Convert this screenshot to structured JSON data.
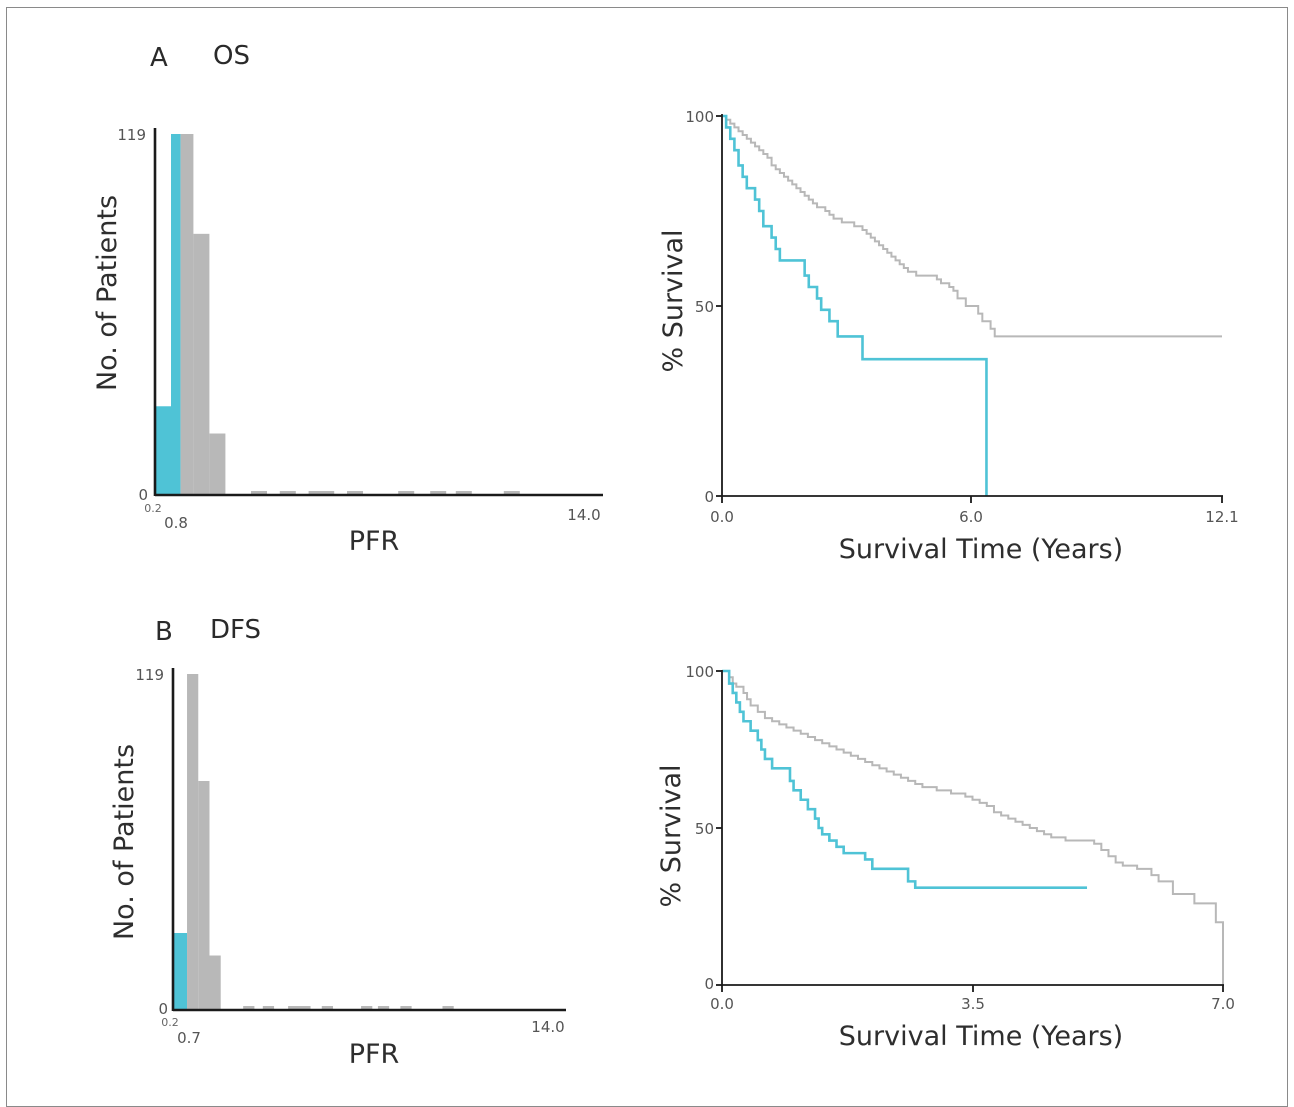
{
  "colors": {
    "high": "#4fc3d6",
    "low": "#b8b8b8",
    "axis": "#1a1a1a"
  },
  "panels": [
    {
      "letter": "A",
      "title": "OS"
    },
    {
      "letter": "B",
      "title": "DFS"
    }
  ],
  "chart_data": [
    {
      "id": "A-hist",
      "type": "bar",
      "title": "",
      "xlabel": "PFR",
      "ylabel": "No. of Patients",
      "yticks": [
        "0",
        "119"
      ],
      "xticks": [
        "0.2",
        "0.8",
        "14.0"
      ],
      "ylim": [
        0,
        119
      ],
      "bins": [
        {
          "x0": 0.0,
          "x1": 0.5,
          "count": 29,
          "group": "high"
        },
        {
          "x0": 0.5,
          "x1": 0.8,
          "count": 119,
          "group": "high"
        },
        {
          "x0": 0.8,
          "x1": 1.2,
          "count": 119,
          "group": "low"
        },
        {
          "x0": 1.2,
          "x1": 1.7,
          "count": 86,
          "group": "low"
        },
        {
          "x0": 1.7,
          "x1": 2.2,
          "count": 20,
          "group": "low"
        },
        {
          "x0": 3.0,
          "x1": 3.5,
          "count": 1,
          "group": "low"
        },
        {
          "x0": 3.9,
          "x1": 4.4,
          "count": 1,
          "group": "low"
        },
        {
          "x0": 4.8,
          "x1": 5.6,
          "count": 0.5,
          "group": "low"
        },
        {
          "x0": 6.0,
          "x1": 6.5,
          "count": 0.5,
          "group": "low"
        },
        {
          "x0": 7.6,
          "x1": 8.1,
          "count": 0.5,
          "group": "low"
        },
        {
          "x0": 8.6,
          "x1": 9.1,
          "count": 1,
          "group": "low"
        },
        {
          "x0": 9.4,
          "x1": 9.9,
          "count": 0.5,
          "group": "low"
        },
        {
          "x0": 10.9,
          "x1": 11.4,
          "count": 1,
          "group": "low"
        }
      ],
      "xlim": [
        0,
        14.0
      ]
    },
    {
      "id": "A-km",
      "type": "line",
      "title": "",
      "xlabel": "Survival Time (Years)",
      "ylabel": "% Survival",
      "xticks": [
        "0.0",
        "6.0",
        "12.1"
      ],
      "yticks": [
        "0",
        "50",
        "100"
      ],
      "xlim": [
        0,
        12.1
      ],
      "ylim": [
        0,
        100
      ],
      "series": [
        {
          "group": "low",
          "points": [
            [
              0,
              100
            ],
            [
              0.1,
              99
            ],
            [
              0.2,
              98
            ],
            [
              0.3,
              97
            ],
            [
              0.4,
              96
            ],
            [
              0.5,
              95
            ],
            [
              0.6,
              94
            ],
            [
              0.7,
              93
            ],
            [
              0.8,
              92
            ],
            [
              0.9,
              91
            ],
            [
              1.0,
              90
            ],
            [
              1.1,
              89
            ],
            [
              1.2,
              87
            ],
            [
              1.3,
              86
            ],
            [
              1.4,
              85
            ],
            [
              1.5,
              84
            ],
            [
              1.6,
              83
            ],
            [
              1.7,
              82
            ],
            [
              1.8,
              81
            ],
            [
              1.9,
              80
            ],
            [
              2.0,
              79
            ],
            [
              2.1,
              78
            ],
            [
              2.2,
              77
            ],
            [
              2.3,
              76
            ],
            [
              2.5,
              75
            ],
            [
              2.6,
              74
            ],
            [
              2.7,
              73
            ],
            [
              2.9,
              72
            ],
            [
              3.2,
              71
            ],
            [
              3.4,
              70
            ],
            [
              3.5,
              69
            ],
            [
              3.6,
              68
            ],
            [
              3.7,
              67
            ],
            [
              3.8,
              66
            ],
            [
              3.9,
              65
            ],
            [
              4.0,
              64
            ],
            [
              4.1,
              63
            ],
            [
              4.2,
              62
            ],
            [
              4.3,
              61
            ],
            [
              4.4,
              60
            ],
            [
              4.5,
              59
            ],
            [
              4.7,
              58
            ],
            [
              5.2,
              57
            ],
            [
              5.3,
              56
            ],
            [
              5.5,
              55
            ],
            [
              5.6,
              54
            ],
            [
              5.7,
              52
            ],
            [
              5.9,
              50
            ],
            [
              6.2,
              48
            ],
            [
              6.3,
              46
            ],
            [
              6.5,
              44
            ],
            [
              6.6,
              42
            ],
            [
              12.1,
              42
            ]
          ]
        },
        {
          "group": "high",
          "points": [
            [
              0,
              100
            ],
            [
              0.1,
              97
            ],
            [
              0.2,
              94
            ],
            [
              0.3,
              91
            ],
            [
              0.4,
              87
            ],
            [
              0.5,
              84
            ],
            [
              0.6,
              81
            ],
            [
              0.8,
              78
            ],
            [
              0.9,
              75
            ],
            [
              1.0,
              71
            ],
            [
              1.2,
              68
            ],
            [
              1.3,
              65
            ],
            [
              1.4,
              62
            ],
            [
              1.7,
              62
            ],
            [
              2.0,
              58
            ],
            [
              2.1,
              55
            ],
            [
              2.3,
              52
            ],
            [
              2.4,
              49
            ],
            [
              2.6,
              46
            ],
            [
              2.8,
              42
            ],
            [
              3.2,
              42
            ],
            [
              3.4,
              36
            ],
            [
              6.4,
              36
            ],
            [
              6.4,
              0
            ]
          ]
        }
      ]
    },
    {
      "id": "B-hist",
      "type": "bar",
      "title": "",
      "xlabel": "PFR",
      "ylabel": "No. of Patients",
      "yticks": [
        "0",
        "119"
      ],
      "xticks": [
        "0.2",
        "0.7",
        "14.0"
      ],
      "ylim": [
        0,
        119
      ],
      "bins": [
        {
          "x0": 0.0,
          "x1": 0.5,
          "count": 27,
          "group": "high"
        },
        {
          "x0": 0.5,
          "x1": 0.9,
          "count": 119,
          "group": "low"
        },
        {
          "x0": 0.9,
          "x1": 1.3,
          "count": 81,
          "group": "low"
        },
        {
          "x0": 1.3,
          "x1": 1.7,
          "count": 19,
          "group": "low"
        },
        {
          "x0": 2.5,
          "x1": 2.9,
          "count": 1,
          "group": "low"
        },
        {
          "x0": 3.2,
          "x1": 3.6,
          "count": 1,
          "group": "low"
        },
        {
          "x0": 4.1,
          "x1": 4.9,
          "count": 0.5,
          "group": "low"
        },
        {
          "x0": 5.3,
          "x1": 5.7,
          "count": 0.5,
          "group": "low"
        },
        {
          "x0": 6.7,
          "x1": 7.1,
          "count": 0.5,
          "group": "low"
        },
        {
          "x0": 7.3,
          "x1": 7.7,
          "count": 1,
          "group": "low"
        },
        {
          "x0": 8.1,
          "x1": 8.5,
          "count": 0.5,
          "group": "low"
        },
        {
          "x0": 9.6,
          "x1": 10.0,
          "count": 1,
          "group": "low"
        }
      ],
      "xlim": [
        0,
        14.0
      ]
    },
    {
      "id": "B-km",
      "type": "line",
      "title": "",
      "xlabel": "Survival Time (Years)",
      "ylabel": "% Survival",
      "xticks": [
        "0.0",
        "3.5",
        "7.0"
      ],
      "yticks": [
        "0",
        "50",
        "100"
      ],
      "xlim": [
        0,
        7.0
      ],
      "ylim": [
        0,
        100
      ],
      "series": [
        {
          "group": "low",
          "points": [
            [
              0,
              100
            ],
            [
              0.1,
              98
            ],
            [
              0.15,
              96
            ],
            [
              0.2,
              95
            ],
            [
              0.3,
              93
            ],
            [
              0.35,
              91
            ],
            [
              0.4,
              89
            ],
            [
              0.5,
              87
            ],
            [
              0.6,
              85
            ],
            [
              0.7,
              84
            ],
            [
              0.8,
              83
            ],
            [
              0.9,
              82
            ],
            [
              1.0,
              81
            ],
            [
              1.1,
              80
            ],
            [
              1.2,
              79
            ],
            [
              1.3,
              78
            ],
            [
              1.4,
              77
            ],
            [
              1.5,
              76
            ],
            [
              1.6,
              75
            ],
            [
              1.7,
              74
            ],
            [
              1.8,
              73
            ],
            [
              1.9,
              72
            ],
            [
              2.0,
              71
            ],
            [
              2.1,
              70
            ],
            [
              2.2,
              69
            ],
            [
              2.3,
              68
            ],
            [
              2.4,
              67
            ],
            [
              2.5,
              66
            ],
            [
              2.6,
              65
            ],
            [
              2.7,
              64
            ],
            [
              2.8,
              63
            ],
            [
              3.0,
              62
            ],
            [
              3.2,
              61
            ],
            [
              3.4,
              60
            ],
            [
              3.5,
              59
            ],
            [
              3.6,
              58
            ],
            [
              3.7,
              57
            ],
            [
              3.8,
              55
            ],
            [
              3.9,
              54
            ],
            [
              4.0,
              53
            ],
            [
              4.1,
              52
            ],
            [
              4.2,
              51
            ],
            [
              4.3,
              50
            ],
            [
              4.4,
              49
            ],
            [
              4.5,
              48
            ],
            [
              4.6,
              47
            ],
            [
              4.8,
              46
            ],
            [
              5.2,
              45
            ],
            [
              5.3,
              43
            ],
            [
              5.4,
              41
            ],
            [
              5.5,
              39
            ],
            [
              5.6,
              38
            ],
            [
              5.8,
              37
            ],
            [
              6.0,
              35
            ],
            [
              6.1,
              33
            ],
            [
              6.3,
              29
            ],
            [
              6.6,
              26
            ],
            [
              6.9,
              20
            ],
            [
              7.0,
              14
            ],
            [
              7.0,
              0
            ]
          ]
        },
        {
          "group": "high",
          "points": [
            [
              0,
              100
            ],
            [
              0.1,
              96
            ],
            [
              0.15,
              93
            ],
            [
              0.2,
              90
            ],
            [
              0.25,
              87
            ],
            [
              0.3,
              84
            ],
            [
              0.4,
              81
            ],
            [
              0.5,
              78
            ],
            [
              0.55,
              75
            ],
            [
              0.6,
              72
            ],
            [
              0.7,
              69
            ],
            [
              0.9,
              69
            ],
            [
              0.95,
              65
            ],
            [
              1.0,
              62
            ],
            [
              1.1,
              59
            ],
            [
              1.2,
              56
            ],
            [
              1.3,
              53
            ],
            [
              1.35,
              50
            ],
            [
              1.4,
              48
            ],
            [
              1.5,
              46
            ],
            [
              1.6,
              44
            ],
            [
              1.7,
              42
            ],
            [
              1.9,
              42
            ],
            [
              2.0,
              40
            ],
            [
              2.1,
              37
            ],
            [
              2.5,
              37
            ],
            [
              2.6,
              33
            ],
            [
              2.7,
              31
            ],
            [
              5.1,
              31
            ]
          ]
        }
      ]
    }
  ]
}
